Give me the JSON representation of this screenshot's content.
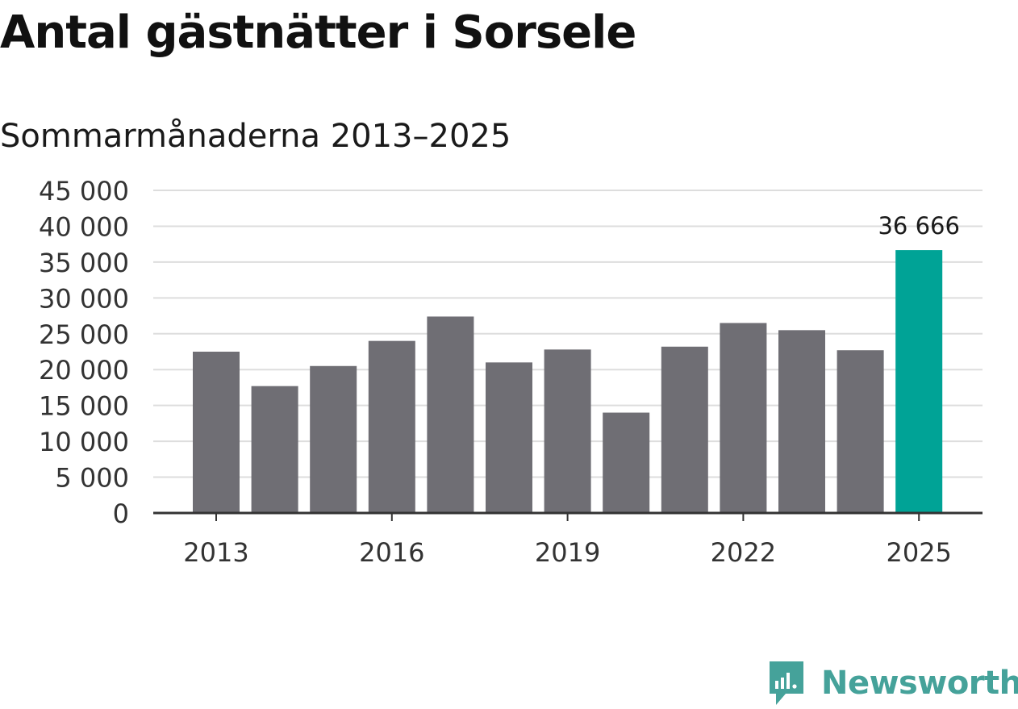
{
  "title": "Antal gästnätter i Sorsele",
  "subtitle": "Sommarmånaderna 2013–2025",
  "brand": {
    "name": "Newsworthy",
    "color": "#45a29a",
    "icon": "bar-chart-speech-bubble-icon"
  },
  "colors": {
    "bar": "#6f6e74",
    "highlight": "#00a396",
    "grid": "#dddddd",
    "axis": "#333333"
  },
  "chart_data": {
    "type": "bar",
    "title": "Antal gästnätter i Sorsele",
    "subtitle": "Sommarmånaderna 2013–2025",
    "xlabel": "",
    "ylabel": "",
    "ylim": [
      0,
      45000
    ],
    "yticks": [
      0,
      5000,
      10000,
      15000,
      20000,
      25000,
      30000,
      35000,
      40000,
      45000
    ],
    "ytick_labels": [
      "0",
      "5 000",
      "10 000",
      "15 000",
      "20 000",
      "25 000",
      "30 000",
      "35 000",
      "40 000",
      "45 000"
    ],
    "categories": [
      "2013",
      "2014",
      "2015",
      "2016",
      "2017",
      "2018",
      "2019",
      "2020",
      "2021",
      "2022",
      "2023",
      "2024",
      "2025"
    ],
    "xtick_labels": [
      "2013",
      "2016",
      "2019",
      "2022",
      "2025"
    ],
    "values": [
      22500,
      17700,
      20500,
      24000,
      27400,
      21000,
      22800,
      14000,
      23200,
      26500,
      25500,
      22700,
      36666
    ],
    "highlight_category": "2025",
    "highlight_label": "36 666",
    "grid": true,
    "legend": "none"
  }
}
